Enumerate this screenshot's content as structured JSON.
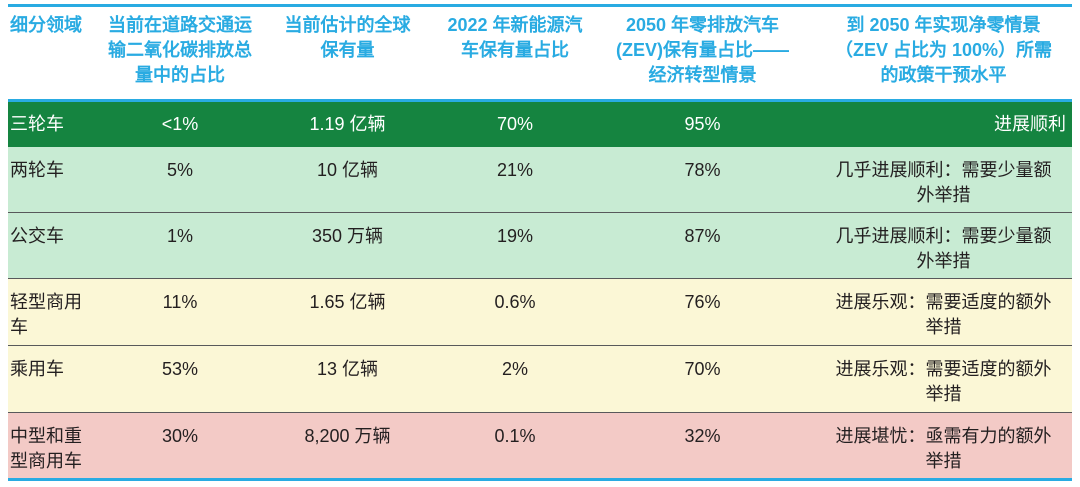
{
  "colors": {
    "accent_rule": "#29ABE2",
    "header_text": "#29ABE2",
    "row_on_track": "#158440",
    "row_almost_on_track": "#C8EBD3",
    "row_optimistic": "#FBF7D6",
    "row_concerning": "#F3CAC6",
    "body_text": "#231F20",
    "row_divider": "#58595B"
  },
  "headers_display": {
    "segment": "细分领域",
    "co2_share": "当前在道路交通运\n输二氧化碳排放总\n量中的占比",
    "global_fleet": "当前估计的全球\n保有量",
    "nev_share_2022": "2022 年新能源汽\n车保有量占比",
    "zev_share_2050": "2050 年零排放汽车\n(ZEV)保有量占比——\n经济转型情景",
    "policy_level": "到 2050 年实现净零情景\n（ZEV 占比为 100%）所需\n的政策干预水平"
  },
  "rows_display": [
    {
      "segment": "三轮车",
      "co2_share": "<1%",
      "global_fleet": "1.19 亿辆",
      "nev_share_2022": "70%",
      "zev_share_2050": "95%",
      "policy_level": "进展顺利"
    },
    {
      "segment": "两轮车",
      "co2_share": "5%",
      "global_fleet": "10 亿辆",
      "nev_share_2022": "21%",
      "zev_share_2050": "78%",
      "policy_level": "几乎进展顺利：需要少量额\n外举措"
    },
    {
      "segment": "公交车",
      "co2_share": "1%",
      "global_fleet": "350 万辆",
      "nev_share_2022": "19%",
      "zev_share_2050": "87%",
      "policy_level": "几乎进展顺利：需要少量额\n外举措"
    },
    {
      "segment": "轻型商用\n车",
      "co2_share": "11%",
      "global_fleet": "1.65 亿辆",
      "nev_share_2022": "0.6%",
      "zev_share_2050": "76%",
      "policy_level": "进展乐观：需要适度的额外\n举措"
    },
    {
      "segment": "乘用车",
      "co2_share": "53%",
      "global_fleet": "13 亿辆",
      "nev_share_2022": "2%",
      "zev_share_2050": "70%",
      "policy_level": "进展乐观：需要适度的额外\n举措"
    },
    {
      "segment": "中型和重\n型商用车",
      "co2_share": "30%",
      "global_fleet": "8,200 万辆",
      "nev_share_2022": "0.1%",
      "zev_share_2050": "32%",
      "policy_level": "进展堪忧：亟需有力的额外\n举措"
    }
  ],
  "chart_data": {
    "type": "table",
    "columns": [
      "细分领域",
      "当前在道路交通运输二氧化碳排放总量中的占比",
      "当前估计的全球保有量",
      "2022 年新能源汽车保有量占比",
      "2050 年零排放汽车(ZEV)保有量占比——经济转型情景",
      "到 2050 年实现净零情景（ZEV 占比为 100%）所需的政策干预水平"
    ],
    "rows": [
      [
        "三轮车",
        "<1%",
        "1.19 亿辆",
        "70%",
        "95%",
        "进展顺利"
      ],
      [
        "两轮车",
        "5%",
        "10 亿辆",
        "21%",
        "78%",
        "几乎进展顺利：需要少量额外举措"
      ],
      [
        "公交车",
        "1%",
        "350 万辆",
        "19%",
        "87%",
        "几乎进展顺利：需要少量额外举措"
      ],
      [
        "轻型商用车",
        "11%",
        "1.65 亿辆",
        "0.6%",
        "76%",
        "进展乐观：需要适度的额外举措"
      ],
      [
        "乘用车",
        "53%",
        "13 亿辆",
        "2%",
        "70%",
        "进展乐观：需要适度的额外举措"
      ],
      [
        "中型和重型商用车",
        "30%",
        "8,200 万辆",
        "0.1%",
        "32%",
        "进展堪忧：亟需有力的额外举措"
      ]
    ]
  }
}
